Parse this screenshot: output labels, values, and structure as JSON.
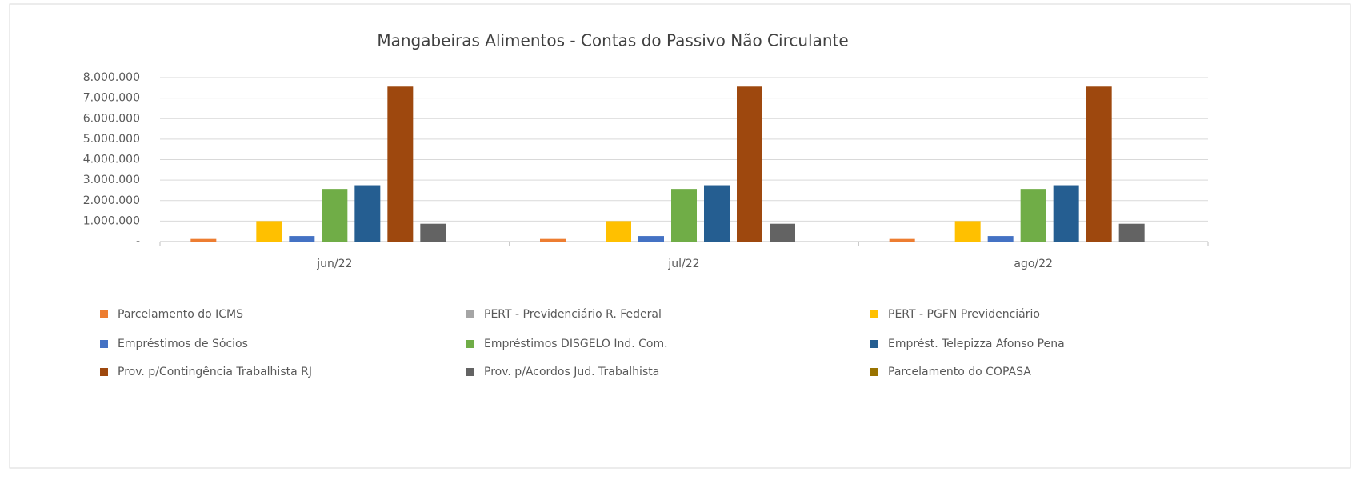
{
  "chart_data": {
    "type": "bar",
    "title": "Mangabeiras Alimentos - Contas do Passivo  Não Circulante",
    "categories": [
      "jun/22",
      "jul/22",
      "ago/22"
    ],
    "series": [
      {
        "name": "Parcelamento do ICMS",
        "color": "#ED7D31",
        "values": [
          130000,
          130000,
          130000
        ]
      },
      {
        "name": "PERT - Previdenciário R. Federal",
        "color": "#A5A5A5",
        "values": [
          0,
          0,
          0
        ]
      },
      {
        "name": "PERT - PGFN Previdenciário",
        "color": "#FFC000",
        "values": [
          1000000,
          1000000,
          1000000
        ]
      },
      {
        "name": "Empréstimos de Sócios",
        "color": "#4472C4",
        "values": [
          270000,
          270000,
          270000
        ]
      },
      {
        "name": "Empréstimos DISGELO Ind. Com.",
        "color": "#70AD47",
        "values": [
          2570000,
          2570000,
          2570000
        ]
      },
      {
        "name": "Emprést. Telepizza Afonso Pena",
        "color": "#255E91",
        "values": [
          2750000,
          2750000,
          2750000
        ]
      },
      {
        "name": "Prov. p/Contingência Trabalhista RJ",
        "color": "#9E480E",
        "values": [
          7560000,
          7560000,
          7560000
        ]
      },
      {
        "name": "Prov. p/Acordos Jud. Trabalhista",
        "color": "#636363",
        "values": [
          870000,
          870000,
          870000
        ]
      },
      {
        "name": "Parcelamento do COPASA",
        "color": "#997300",
        "values": [
          0,
          0,
          0
        ]
      }
    ],
    "ylim": [
      0,
      8000000
    ],
    "yticks": [
      {
        "value": 0,
        "label": "-"
      },
      {
        "value": 1000000,
        "label": "1.000.000"
      },
      {
        "value": 2000000,
        "label": "2.000.000"
      },
      {
        "value": 3000000,
        "label": "3.000.000"
      },
      {
        "value": 4000000,
        "label": "4.000.000"
      },
      {
        "value": 5000000,
        "label": "5.000.000"
      },
      {
        "value": 6000000,
        "label": "6.000.000"
      },
      {
        "value": 7000000,
        "label": "7.000.000"
      },
      {
        "value": 8000000,
        "label": "8.000.000"
      }
    ],
    "grid": true
  }
}
